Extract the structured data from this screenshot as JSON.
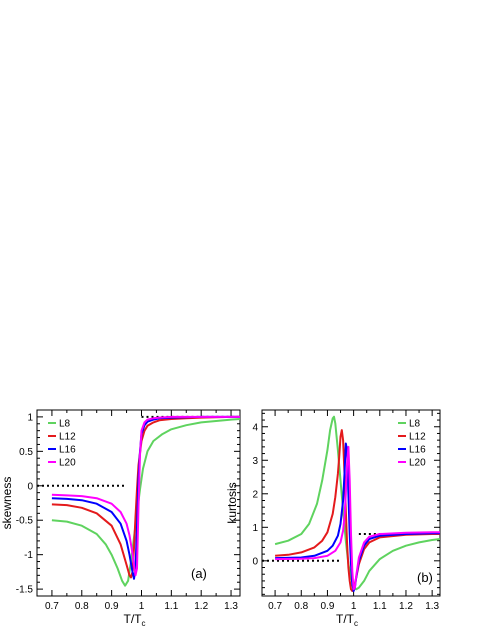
{
  "chart_data": [
    {
      "type": "line",
      "panel_label": "(a)",
      "xlabel": "T/T",
      "xlabel_sub": "c",
      "ylabel": "skewness",
      "xlim": [
        0.65,
        1.33
      ],
      "ylim": [
        -1.6,
        1.1
      ],
      "xticks": [
        0.7,
        0.8,
        0.9,
        1,
        1.1,
        1.2,
        1.3
      ],
      "yticks": [
        -1.5,
        -1,
        -0.5,
        0,
        0.5,
        1
      ],
      "ytick_labels": [
        "-1.5",
        "-1",
        "-0.5",
        "0",
        "0.5",
        "1"
      ],
      "legend_position": "top-left",
      "reference_lines": [
        {
          "x": [
            0.65,
            0.95
          ],
          "y": [
            0,
            0
          ]
        },
        {
          "x": [
            1.0,
            1.33
          ],
          "y": [
            1,
            1
          ]
        }
      ],
      "series": [
        {
          "name": "L8",
          "color": "#5fd35f",
          "x": [
            0.7,
            0.75,
            0.8,
            0.85,
            0.88,
            0.9,
            0.92,
            0.935,
            0.945,
            0.955,
            0.965,
            0.975,
            0.985,
            0.995,
            1.005,
            1.02,
            1.04,
            1.07,
            1.1,
            1.15,
            1.2,
            1.25,
            1.3,
            1.33
          ],
          "y": [
            -0.5,
            -0.52,
            -0.58,
            -0.7,
            -0.85,
            -1.0,
            -1.2,
            -1.38,
            -1.45,
            -1.38,
            -1.1,
            -0.75,
            -0.4,
            -0.05,
            0.25,
            0.5,
            0.65,
            0.75,
            0.82,
            0.88,
            0.92,
            0.94,
            0.96,
            0.97
          ]
        },
        {
          "name": "L12",
          "color": "#e41a1c",
          "x": [
            0.7,
            0.75,
            0.8,
            0.85,
            0.9,
            0.93,
            0.95,
            0.96,
            0.965,
            0.97,
            0.975,
            0.98,
            0.985,
            0.99,
            1.0,
            1.01,
            1.02,
            1.04,
            1.06,
            1.1,
            1.15,
            1.2,
            1.3,
            1.33
          ],
          "y": [
            -0.27,
            -0.28,
            -0.32,
            -0.4,
            -0.58,
            -0.85,
            -1.15,
            -1.3,
            -1.33,
            -1.25,
            -0.9,
            -0.45,
            -0.05,
            0.3,
            0.65,
            0.8,
            0.87,
            0.92,
            0.95,
            0.97,
            0.98,
            0.99,
            1.0,
            1.0
          ]
        },
        {
          "name": "L16",
          "color": "#0000ff",
          "x": [
            0.7,
            0.75,
            0.8,
            0.85,
            0.9,
            0.93,
            0.95,
            0.96,
            0.97,
            0.975,
            0.98,
            0.985,
            0.99,
            0.995,
            1.0,
            1.01,
            1.02,
            1.04,
            1.06,
            1.1,
            1.2,
            1.3,
            1.33
          ],
          "y": [
            -0.18,
            -0.19,
            -0.21,
            -0.26,
            -0.38,
            -0.55,
            -0.8,
            -1.0,
            -1.25,
            -1.35,
            -1.2,
            -0.6,
            0.1,
            0.5,
            0.75,
            0.88,
            0.93,
            0.96,
            0.98,
            0.99,
            1.0,
            1.0,
            1.0
          ]
        },
        {
          "name": "L20",
          "color": "#ff00ff",
          "x": [
            0.7,
            0.75,
            0.8,
            0.85,
            0.9,
            0.93,
            0.95,
            0.96,
            0.97,
            0.975,
            0.98,
            0.985,
            0.99,
            0.995,
            1.0,
            1.01,
            1.02,
            1.04,
            1.06,
            1.1,
            1.2,
            1.3,
            1.33
          ],
          "y": [
            -0.13,
            -0.14,
            -0.15,
            -0.18,
            -0.26,
            -0.38,
            -0.55,
            -0.72,
            -0.98,
            -1.15,
            -1.3,
            -1.2,
            -0.3,
            0.45,
            0.8,
            0.92,
            0.96,
            0.98,
            0.99,
            1.0,
            1.0,
            1.0,
            1.0
          ]
        }
      ]
    },
    {
      "type": "line",
      "panel_label": "(b)",
      "xlabel": "T/T",
      "xlabel_sub": "c",
      "ylabel": "kurtosis",
      "xlim": [
        0.65,
        1.33
      ],
      "ylim": [
        -1.05,
        4.5
      ],
      "xticks": [
        0.7,
        0.8,
        0.9,
        1,
        1.1,
        1.2,
        1.3
      ],
      "yticks": [
        0,
        1,
        2,
        3,
        4
      ],
      "ytick_labels": [
        "0",
        "1",
        "2",
        "3",
        "4"
      ],
      "legend_position": "top-right",
      "reference_lines": [
        {
          "x": [
            0.65,
            0.95
          ],
          "y": [
            0,
            0
          ]
        },
        {
          "x": [
            1.02,
            1.33
          ],
          "y": [
            0.8,
            0.8
          ]
        }
      ],
      "series": [
        {
          "name": "L8",
          "color": "#5fd35f",
          "x": [
            0.7,
            0.75,
            0.8,
            0.83,
            0.86,
            0.88,
            0.9,
            0.91,
            0.92,
            0.925,
            0.93,
            0.94,
            0.95,
            0.96,
            0.97,
            0.98,
            0.99,
            1.0,
            1.01,
            1.02,
            1.04,
            1.06,
            1.1,
            1.15,
            1.2,
            1.25,
            1.3,
            1.33
          ],
          "y": [
            0.5,
            0.6,
            0.8,
            1.1,
            1.7,
            2.4,
            3.3,
            3.9,
            4.25,
            4.3,
            4.1,
            3.3,
            2.4,
            1.5,
            0.6,
            -0.1,
            -0.5,
            -0.75,
            -0.85,
            -0.8,
            -0.6,
            -0.3,
            0.05,
            0.3,
            0.45,
            0.55,
            0.62,
            0.65
          ]
        },
        {
          "name": "L12",
          "color": "#e41a1c",
          "x": [
            0.7,
            0.75,
            0.8,
            0.85,
            0.88,
            0.9,
            0.92,
            0.93,
            0.94,
            0.945,
            0.95,
            0.955,
            0.96,
            0.965,
            0.97,
            0.975,
            0.98,
            0.985,
            0.99,
            0.995,
            1.0,
            1.01,
            1.02,
            1.04,
            1.06,
            1.1,
            1.2,
            1.3,
            1.33
          ],
          "y": [
            0.15,
            0.18,
            0.25,
            0.4,
            0.6,
            0.85,
            1.4,
            1.9,
            2.6,
            3.1,
            3.7,
            3.9,
            3.6,
            2.6,
            1.5,
            0.5,
            -0.2,
            -0.6,
            -0.85,
            -0.9,
            -0.85,
            -0.5,
            -0.1,
            0.35,
            0.55,
            0.7,
            0.78,
            0.8,
            0.8
          ]
        },
        {
          "name": "L16",
          "color": "#0000ff",
          "x": [
            0.7,
            0.8,
            0.85,
            0.9,
            0.92,
            0.94,
            0.95,
            0.96,
            0.965,
            0.97,
            0.975,
            0.98,
            0.985,
            0.99,
            0.995,
            1.0,
            1.005,
            1.01,
            1.02,
            1.04,
            1.06,
            1.1,
            1.2,
            1.3,
            1.33
          ],
          "y": [
            0.08,
            0.1,
            0.15,
            0.3,
            0.45,
            0.75,
            1.1,
            1.8,
            2.6,
            3.5,
            3.3,
            2.0,
            0.8,
            -0.1,
            -0.7,
            -0.9,
            -0.8,
            -0.5,
            0.0,
            0.45,
            0.65,
            0.75,
            0.8,
            0.82,
            0.82
          ]
        },
        {
          "name": "L20",
          "color": "#ff00ff",
          "x": [
            0.7,
            0.8,
            0.85,
            0.9,
            0.93,
            0.95,
            0.96,
            0.965,
            0.97,
            0.975,
            0.98,
            0.985,
            0.99,
            0.995,
            1.0,
            1.005,
            1.01,
            1.02,
            1.04,
            1.06,
            1.1,
            1.2,
            1.3,
            1.33
          ],
          "y": [
            0.05,
            0.06,
            0.08,
            0.15,
            0.3,
            0.55,
            0.9,
            1.3,
            2.0,
            2.9,
            3.4,
            2.4,
            0.8,
            -0.3,
            -0.85,
            -0.8,
            -0.45,
            0.1,
            0.55,
            0.72,
            0.8,
            0.84,
            0.85,
            0.85
          ]
        }
      ]
    }
  ]
}
